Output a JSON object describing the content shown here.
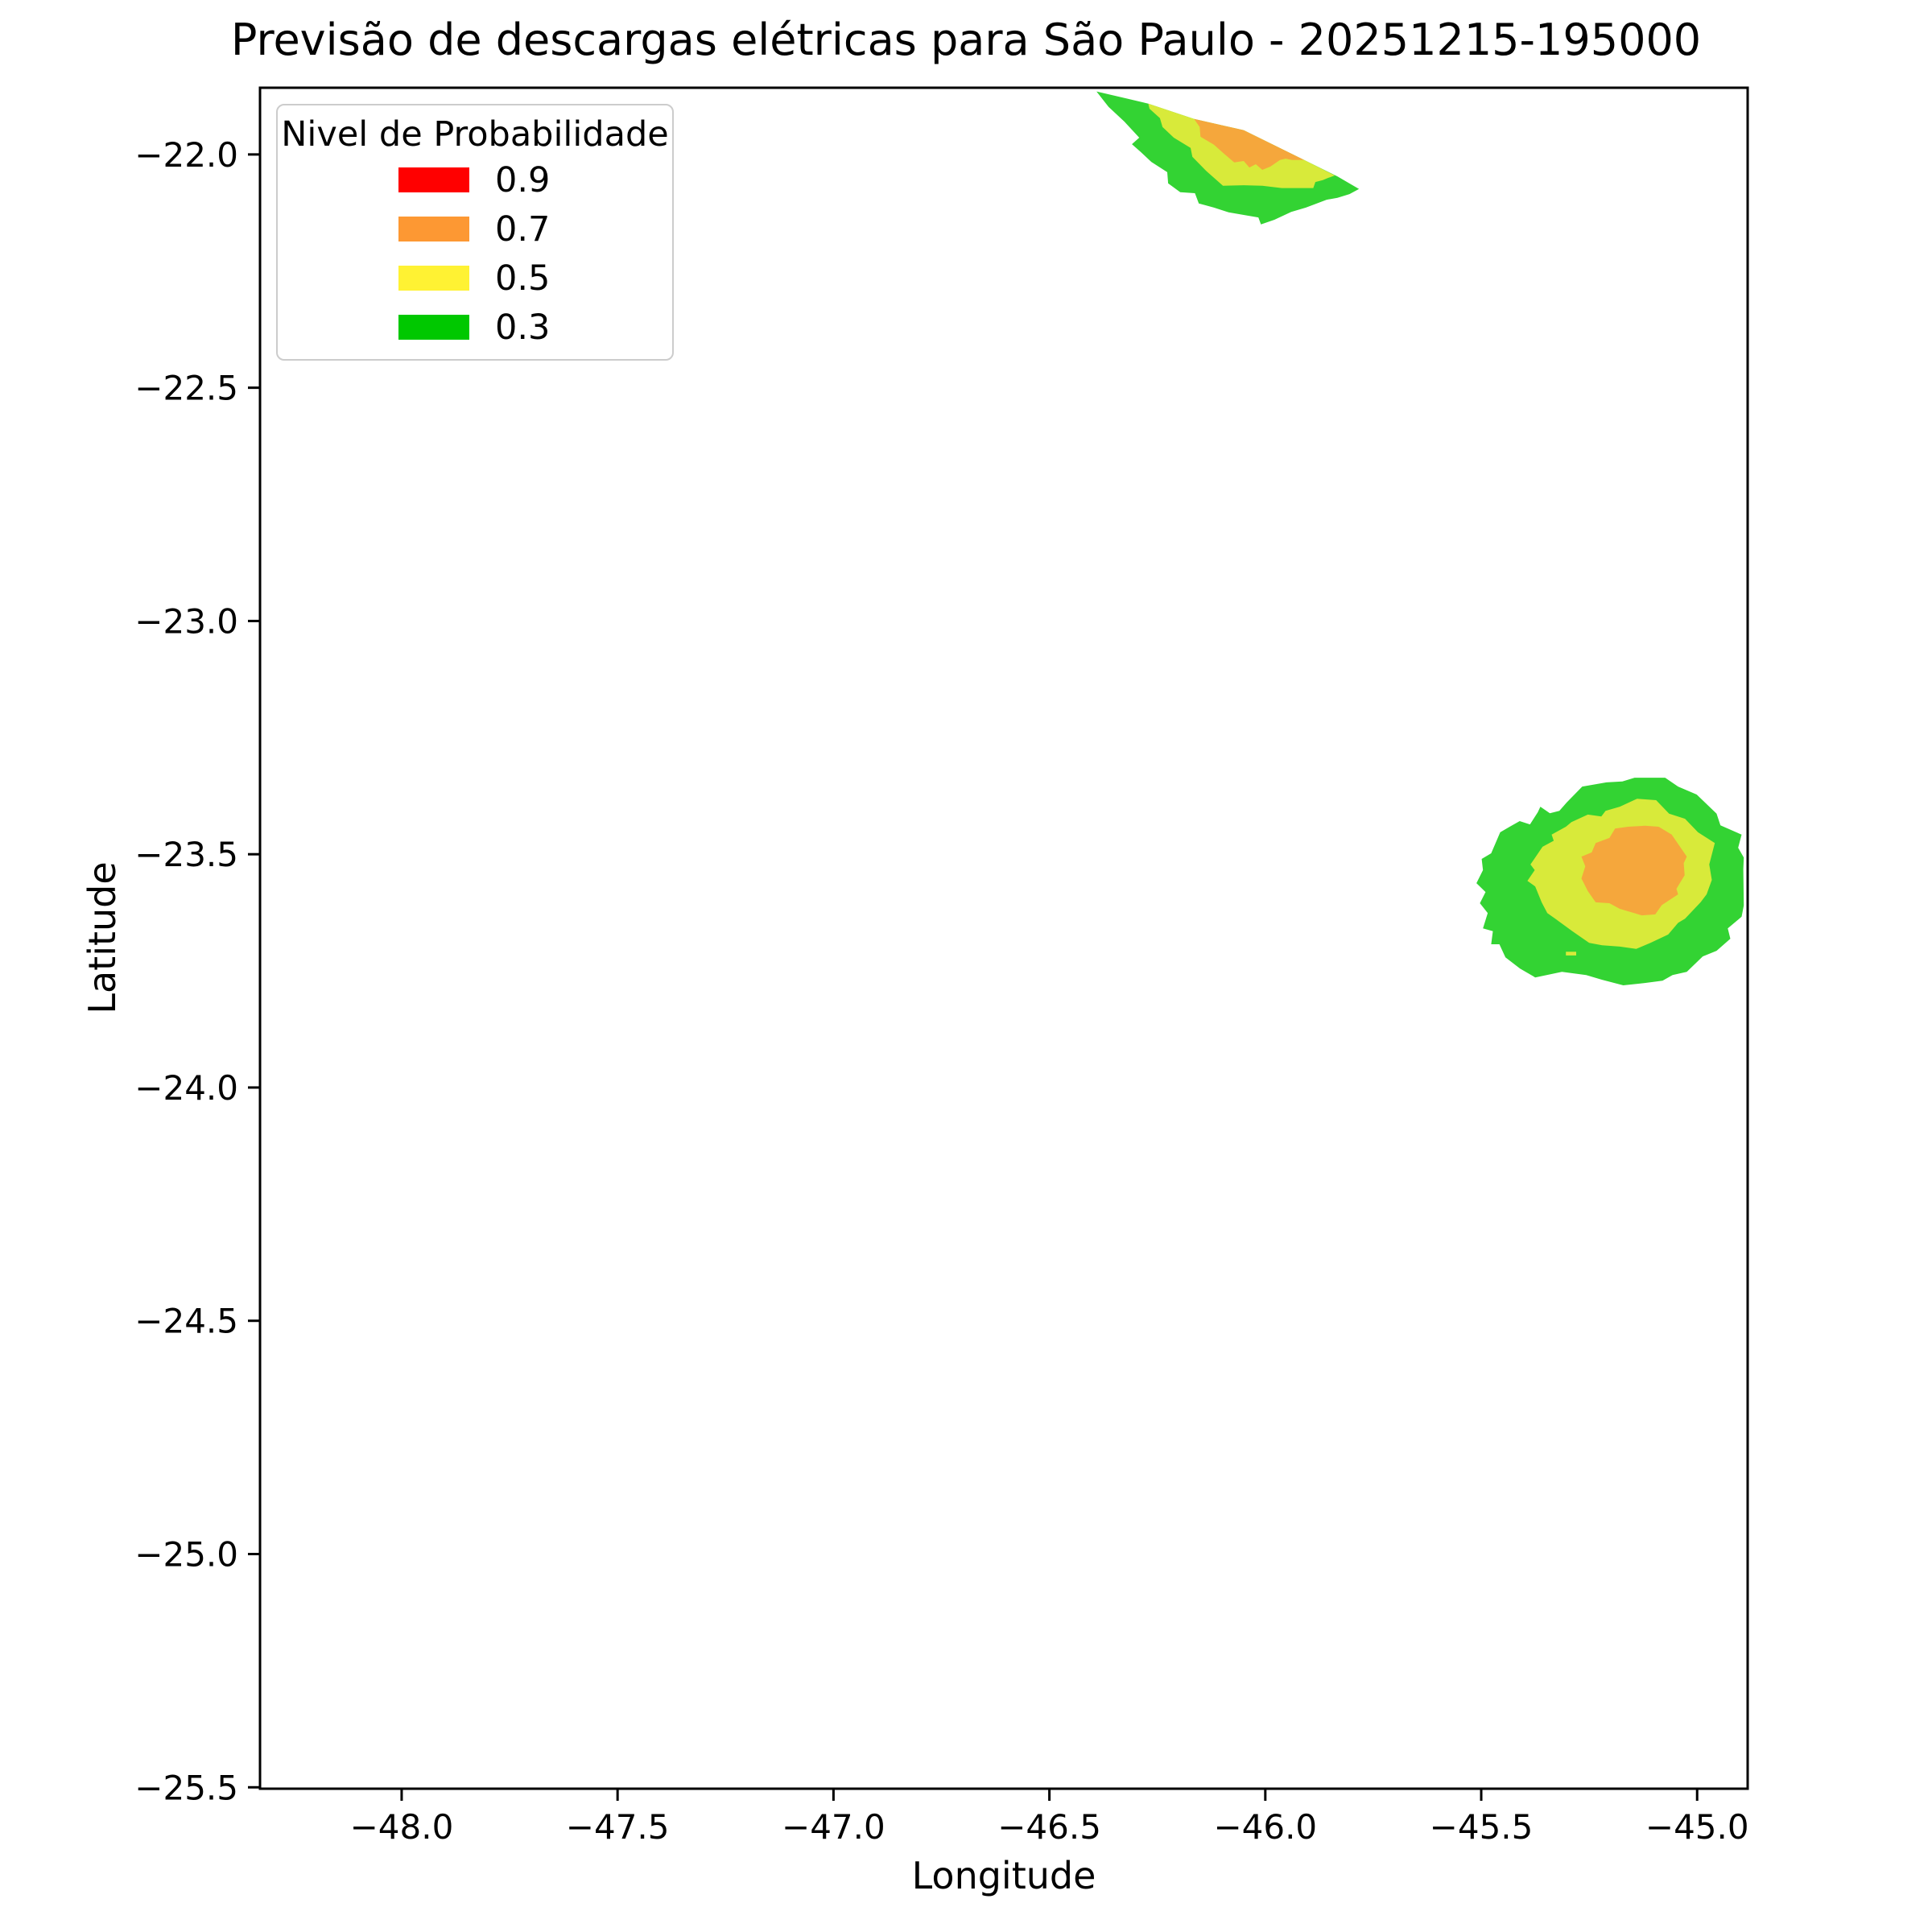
{
  "figure": {
    "title": "Previsão de descargas elétricas para São Paulo - 20251215-195000",
    "xlabel": "Longitude",
    "ylabel": "Latitude"
  },
  "legend": {
    "title": "Nivel de Probabilidade",
    "entries": [
      {
        "label": "0.9",
        "color": "#ff0000"
      },
      {
        "label": "0.7",
        "color": "#fd9833"
      },
      {
        "label": "0.5",
        "color": "#fff233"
      },
      {
        "label": "0.3",
        "color": "#00c800"
      }
    ]
  },
  "chart_data": {
    "type": "filled_contour",
    "title": "Previsão de descargas elétricas para São Paulo - 20251215-195000",
    "xlabel": "Longitude",
    "ylabel": "Latitude",
    "xlim": [
      -48.328,
      -44.883
    ],
    "ylim": [
      -25.503,
      -21.857
    ],
    "grid": false,
    "legend_position": "upper left",
    "xticks": [
      -48.0,
      -47.5,
      -47.0,
      -46.5,
      -46.0,
      -45.5,
      -45.0
    ],
    "xtick_labels": [
      "−48.0",
      "−47.5",
      "−47.0",
      "−46.5",
      "−46.0",
      "−45.5",
      "−45.0"
    ],
    "yticks": [
      -22.0,
      -22.5,
      -23.0,
      -23.5,
      -24.0,
      -24.5,
      -25.0,
      -25.5
    ],
    "ytick_labels": [
      "−22.0",
      "−22.5",
      "−23.0",
      "−23.5",
      "−24.0",
      "−24.5",
      "−25.0",
      "−25.5"
    ],
    "levels": [
      0.3,
      0.5,
      0.7,
      0.9
    ],
    "level_colors": {
      "0.9": "#ff0000",
      "0.7": "#fd9833",
      "0.5": "#fff233",
      "0.3": "#00c800"
    },
    "rendered_fill_colors": {
      "0.3": "#33d333",
      "0.5": "#d8ea3a",
      "0.7": "#f5a73c"
    },
    "regions": [
      {
        "name": "north-cell",
        "level": 0.3,
        "color": "#33d333",
        "polygon": [
          [
            -46.391,
            -21.865
          ],
          [
            -46.271,
            -21.891
          ],
          [
            -46.165,
            -21.924
          ],
          [
            -46.05,
            -21.948
          ],
          [
            -45.91,
            -22.012
          ],
          [
            -45.833,
            -22.047
          ],
          [
            -45.783,
            -22.074
          ],
          [
            -45.805,
            -22.085
          ],
          [
            -45.833,
            -22.093
          ],
          [
            -45.858,
            -22.097
          ],
          [
            -45.906,
            -22.114
          ],
          [
            -45.94,
            -22.123
          ],
          [
            -45.979,
            -22.14
          ],
          [
            -46.01,
            -22.15
          ],
          [
            -46.016,
            -22.135
          ],
          [
            -46.042,
            -22.131
          ],
          [
            -46.085,
            -22.124
          ],
          [
            -46.119,
            -22.114
          ],
          [
            -46.154,
            -22.105
          ],
          [
            -46.163,
            -22.083
          ],
          [
            -46.197,
            -22.081
          ],
          [
            -46.225,
            -22.062
          ],
          [
            -46.227,
            -22.038
          ],
          [
            -46.264,
            -22.016
          ],
          [
            -46.288,
            -21.995
          ],
          [
            -46.309,
            -21.978
          ],
          [
            -46.292,
            -21.964
          ],
          [
            -46.327,
            -21.929
          ],
          [
            -46.363,
            -21.898
          ]
        ]
      },
      {
        "name": "north-cell",
        "level": 0.5,
        "color": "#d8ea3a",
        "polygon": [
          [
            -46.271,
            -21.891
          ],
          [
            -46.165,
            -21.924
          ],
          [
            -46.05,
            -21.948
          ],
          [
            -45.91,
            -22.012
          ],
          [
            -45.839,
            -22.045
          ],
          [
            -45.854,
            -22.05
          ],
          [
            -45.867,
            -22.055
          ],
          [
            -45.884,
            -22.059
          ],
          [
            -45.889,
            -22.072
          ],
          [
            -45.962,
            -22.072
          ],
          [
            -46.007,
            -22.067
          ],
          [
            -46.05,
            -22.066
          ],
          [
            -46.098,
            -22.067
          ],
          [
            -46.137,
            -22.035
          ],
          [
            -46.169,
            -22.005
          ],
          [
            -46.173,
            -21.986
          ],
          [
            -46.212,
            -21.964
          ],
          [
            -46.238,
            -21.941
          ],
          [
            -46.244,
            -21.922
          ],
          [
            -46.268,
            -21.902
          ]
        ]
      },
      {
        "name": "north-cell",
        "level": 0.7,
        "color": "#f5a73c",
        "polygon": [
          [
            -46.165,
            -21.924
          ],
          [
            -46.05,
            -21.948
          ],
          [
            -45.91,
            -22.012
          ],
          [
            -45.938,
            -22.012
          ],
          [
            -45.953,
            -22.009
          ],
          [
            -45.966,
            -22.012
          ],
          [
            -45.988,
            -22.026
          ],
          [
            -46.007,
            -22.033
          ],
          [
            -46.022,
            -22.021
          ],
          [
            -46.037,
            -22.028
          ],
          [
            -46.05,
            -22.014
          ],
          [
            -46.072,
            -22.017
          ],
          [
            -46.096,
            -21.998
          ],
          [
            -46.119,
            -21.979
          ],
          [
            -46.15,
            -21.962
          ],
          [
            -46.152,
            -21.941
          ]
        ]
      },
      {
        "name": "southeast-cell",
        "level": 0.3,
        "color": "#33d333",
        "polygon": [
          [
            -45.363,
            -23.398
          ],
          [
            -45.341,
            -23.412
          ],
          [
            -45.319,
            -23.407
          ],
          [
            -45.302,
            -23.389
          ],
          [
            -45.266,
            -23.355
          ],
          [
            -45.21,
            -23.346
          ],
          [
            -45.173,
            -23.344
          ],
          [
            -45.145,
            -23.336
          ],
          [
            -45.074,
            -23.336
          ],
          [
            -45.044,
            -23.355
          ],
          [
            -45.001,
            -23.372
          ],
          [
            -44.955,
            -23.413
          ],
          [
            -44.946,
            -23.438
          ],
          [
            -44.897,
            -23.458
          ],
          [
            -44.905,
            -23.486
          ],
          [
            -44.892,
            -23.507
          ],
          [
            -44.893,
            -23.532
          ],
          [
            -44.892,
            -23.61
          ],
          [
            -44.897,
            -23.634
          ],
          [
            -44.929,
            -23.659
          ],
          [
            -44.923,
            -23.681
          ],
          [
            -44.955,
            -23.707
          ],
          [
            -44.987,
            -23.719
          ],
          [
            -45.024,
            -23.752
          ],
          [
            -45.057,
            -23.759
          ],
          [
            -45.08,
            -23.771
          ],
          [
            -45.121,
            -23.776
          ],
          [
            -45.171,
            -23.781
          ],
          [
            -45.22,
            -23.769
          ],
          [
            -45.257,
            -23.759
          ],
          [
            -45.313,
            -23.752
          ],
          [
            -45.375,
            -23.764
          ],
          [
            -45.41,
            -23.745
          ],
          [
            -45.444,
            -23.721
          ],
          [
            -45.458,
            -23.693
          ],
          [
            -45.477,
            -23.693
          ],
          [
            -45.473,
            -23.665
          ],
          [
            -45.496,
            -23.659
          ],
          [
            -45.485,
            -23.626
          ],
          [
            -45.503,
            -23.605
          ],
          [
            -45.49,
            -23.581
          ],
          [
            -45.511,
            -23.562
          ],
          [
            -45.496,
            -23.534
          ],
          [
            -45.499,
            -23.51
          ],
          [
            -45.477,
            -23.498
          ],
          [
            -45.456,
            -23.453
          ],
          [
            -45.434,
            -23.441
          ],
          [
            -45.411,
            -23.429
          ],
          [
            -45.387,
            -23.436
          ],
          [
            -45.369,
            -23.41
          ]
        ]
      },
      {
        "name": "southeast-cell",
        "level": 0.5,
        "color": "#d8ea3a",
        "polygon": [
          [
            -45.139,
            -23.381
          ],
          [
            -45.095,
            -23.384
          ],
          [
            -45.065,
            -23.413
          ],
          [
            -45.028,
            -23.424
          ],
          [
            -44.998,
            -23.453
          ],
          [
            -44.959,
            -23.476
          ],
          [
            -44.972,
            -23.522
          ],
          [
            -44.966,
            -23.555
          ],
          [
            -44.978,
            -23.586
          ],
          [
            -44.992,
            -23.603
          ],
          [
            -45.028,
            -23.638
          ],
          [
            -45.044,
            -23.647
          ],
          [
            -45.067,
            -23.672
          ],
          [
            -45.108,
            -23.69
          ],
          [
            -45.141,
            -23.703
          ],
          [
            -45.179,
            -23.698
          ],
          [
            -45.22,
            -23.695
          ],
          [
            -45.25,
            -23.69
          ],
          [
            -45.289,
            -23.665
          ],
          [
            -45.326,
            -23.64
          ],
          [
            -45.347,
            -23.626
          ],
          [
            -45.36,
            -23.603
          ],
          [
            -45.375,
            -23.569
          ],
          [
            -45.393,
            -23.557
          ],
          [
            -45.376,
            -23.534
          ],
          [
            -45.386,
            -23.522
          ],
          [
            -45.358,
            -23.484
          ],
          [
            -45.332,
            -23.471
          ],
          [
            -45.337,
            -23.458
          ],
          [
            -45.304,
            -23.441
          ],
          [
            -45.291,
            -23.431
          ],
          [
            -45.253,
            -23.415
          ],
          [
            -45.222,
            -23.419
          ],
          [
            -45.212,
            -23.407
          ],
          [
            -45.179,
            -23.398
          ]
        ]
      },
      {
        "name": "southeast-cell",
        "level": 0.7,
        "color": "#f5a73c",
        "polygon": [
          [
            -45.16,
            -23.441
          ],
          [
            -45.121,
            -23.439
          ],
          [
            -45.089,
            -23.441
          ],
          [
            -45.059,
            -23.458
          ],
          [
            -45.024,
            -23.505
          ],
          [
            -45.031,
            -23.519
          ],
          [
            -45.029,
            -23.545
          ],
          [
            -45.048,
            -23.574
          ],
          [
            -45.044,
            -23.586
          ],
          [
            -45.082,
            -23.609
          ],
          [
            -45.097,
            -23.629
          ],
          [
            -45.128,
            -23.631
          ],
          [
            -45.179,
            -23.617
          ],
          [
            -45.203,
            -23.605
          ],
          [
            -45.235,
            -23.603
          ],
          [
            -45.253,
            -23.579
          ],
          [
            -45.268,
            -23.552
          ],
          [
            -45.259,
            -23.526
          ],
          [
            -45.268,
            -23.505
          ],
          [
            -45.244,
            -23.496
          ],
          [
            -45.235,
            -23.476
          ],
          [
            -45.203,
            -23.465
          ],
          [
            -45.19,
            -23.445
          ]
        ]
      },
      {
        "name": "southeast-fleck",
        "level": 0.5,
        "color": "#d8ea3a",
        "polygon": [
          [
            -45.304,
            -23.709
          ],
          [
            -45.28,
            -23.709
          ],
          [
            -45.28,
            -23.717
          ],
          [
            -45.304,
            -23.717
          ]
        ]
      }
    ]
  }
}
